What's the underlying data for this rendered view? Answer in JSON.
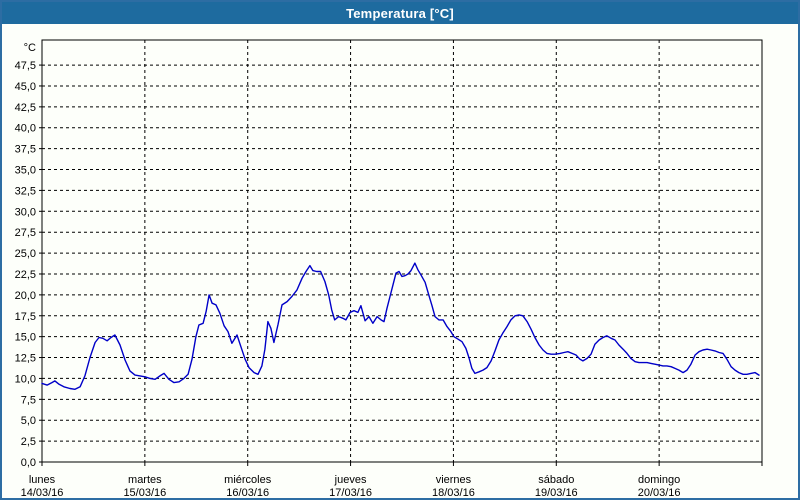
{
  "window": {
    "title": "Temperatura [°C]"
  },
  "colors": {
    "titlebar_bg": "#1e6b9f",
    "window_border": "#2d6da3",
    "window_bg": "#fdfffa",
    "line": "#0000c8",
    "grid": "#000000",
    "text": "#000000"
  },
  "chart_data": {
    "type": "line",
    "title": "Temperatura [°C]",
    "ylabel": "°C",
    "xlabel": "",
    "ylim": [
      0,
      50.5
    ],
    "y_tick_step": 2.5,
    "grid": "dashed, horizontal at every 2.5 °C and vertical at day boundaries",
    "legend_position": "none",
    "y_ticks": [
      {
        "v": 0,
        "label": "0,0"
      },
      {
        "v": 2.5,
        "label": "2,5"
      },
      {
        "v": 5,
        "label": "5,0"
      },
      {
        "v": 7.5,
        "label": "7,5"
      },
      {
        "v": 10,
        "label": "10,0"
      },
      {
        "v": 12.5,
        "label": "12,5"
      },
      {
        "v": 15,
        "label": "15,0"
      },
      {
        "v": 17.5,
        "label": "17,5"
      },
      {
        "v": 20,
        "label": "20,0"
      },
      {
        "v": 22.5,
        "label": "22,5"
      },
      {
        "v": 25,
        "label": "25,0"
      },
      {
        "v": 27.5,
        "label": "27,5"
      },
      {
        "v": 30,
        "label": "30,0"
      },
      {
        "v": 32.5,
        "label": "32,5"
      },
      {
        "v": 35,
        "label": "35,0"
      },
      {
        "v": 37.5,
        "label": "37,5"
      },
      {
        "v": 40,
        "label": "40,0"
      },
      {
        "v": 42.5,
        "label": "42,5"
      },
      {
        "v": 45,
        "label": "45,0"
      },
      {
        "v": 47.5,
        "label": "47,5"
      }
    ],
    "x_days": [
      {
        "weekday": "lunes",
        "date": "14/03/16"
      },
      {
        "weekday": "martes",
        "date": "15/03/16"
      },
      {
        "weekday": "miércoles",
        "date": "16/03/16"
      },
      {
        "weekday": "jueves",
        "date": "17/03/16"
      },
      {
        "weekday": "viernes",
        "date": "18/03/16"
      },
      {
        "weekday": "sábado",
        "date": "19/03/16"
      },
      {
        "weekday": "domingo",
        "date": "20/03/16"
      }
    ],
    "x_hours_range": [
      0,
      168
    ],
    "series": [
      {
        "name": "Temperatura",
        "color": "#0000c8",
        "points_unit": "[hours since lunes 00:00, °C]",
        "points": [
          [
            0,
            9.4
          ],
          [
            1.2,
            9.2
          ],
          [
            2.3,
            9.5
          ],
          [
            3,
            9.7
          ],
          [
            4,
            9.3
          ],
          [
            5.1,
            9
          ],
          [
            6.5,
            8.8
          ],
          [
            7.7,
            8.7
          ],
          [
            8.9,
            9
          ],
          [
            10,
            10.3
          ],
          [
            11.2,
            12.5
          ],
          [
            12.4,
            14.3
          ],
          [
            13.3,
            14.9
          ],
          [
            14.2,
            14.8
          ],
          [
            15.2,
            14.5
          ],
          [
            16.1,
            14.9
          ],
          [
            17,
            15.2
          ],
          [
            18.2,
            14
          ],
          [
            19.4,
            12.2
          ],
          [
            20.5,
            10.9
          ],
          [
            21.7,
            10.4
          ],
          [
            22.9,
            10.3
          ],
          [
            24,
            10.2
          ],
          [
            25.2,
            10
          ],
          [
            26.4,
            9.9
          ],
          [
            27.5,
            10.3
          ],
          [
            28.5,
            10.6
          ],
          [
            29.6,
            9.9
          ],
          [
            30.8,
            9.5
          ],
          [
            32,
            9.6
          ],
          [
            33.1,
            10
          ],
          [
            34.1,
            10.5
          ],
          [
            35,
            12.3
          ],
          [
            35.9,
            15
          ],
          [
            36.6,
            16.4
          ],
          [
            37.6,
            16.6
          ],
          [
            38.3,
            18
          ],
          [
            39,
            20
          ],
          [
            39.7,
            19
          ],
          [
            40.6,
            18.8
          ],
          [
            41.5,
            17.8
          ],
          [
            42.5,
            16.3
          ],
          [
            43.4,
            15.6
          ],
          [
            44.3,
            14.2
          ],
          [
            45.5,
            15.2
          ],
          [
            46.4,
            13.8
          ],
          [
            47.4,
            12.3
          ],
          [
            48.3,
            11.3
          ],
          [
            49.5,
            10.7
          ],
          [
            50.4,
            10.5
          ],
          [
            51.3,
            11.5
          ],
          [
            52,
            13.5
          ],
          [
            52.7,
            16.8
          ],
          [
            53.4,
            16
          ],
          [
            54.1,
            14.3
          ],
          [
            55.1,
            16.5
          ],
          [
            56,
            18.8
          ],
          [
            57.2,
            19.2
          ],
          [
            58.3,
            19.8
          ],
          [
            59.5,
            20.6
          ],
          [
            60.7,
            22
          ],
          [
            61.6,
            22.8
          ],
          [
            62.5,
            23.5
          ],
          [
            63.2,
            22.9
          ],
          [
            64.1,
            22.8
          ],
          [
            65,
            22.8
          ],
          [
            66,
            21.6
          ],
          [
            66.9,
            20
          ],
          [
            67.6,
            18.2
          ],
          [
            68.3,
            17
          ],
          [
            69.2,
            17.4
          ],
          [
            70.2,
            17.2
          ],
          [
            70.9,
            17
          ],
          [
            71.9,
            17.9
          ],
          [
            72.8,
            18.1
          ],
          [
            73.7,
            17.9
          ],
          [
            74.4,
            18.7
          ],
          [
            75.4,
            16.9
          ],
          [
            76.3,
            17.4
          ],
          [
            77.2,
            16.6
          ],
          [
            78.2,
            17.4
          ],
          [
            79.1,
            17
          ],
          [
            79.8,
            16.8
          ],
          [
            80.5,
            18.4
          ],
          [
            81.2,
            19.8
          ],
          [
            81.9,
            21.2
          ],
          [
            82.6,
            22.6
          ],
          [
            83.3,
            22.8
          ],
          [
            84,
            22.2
          ],
          [
            84.7,
            22.3
          ],
          [
            85.4,
            22.5
          ],
          [
            86.1,
            22.9
          ],
          [
            87,
            23.8
          ],
          [
            87.7,
            23
          ],
          [
            88.4,
            22.4
          ],
          [
            89.4,
            21.5
          ],
          [
            90.3,
            19.9
          ],
          [
            91,
            18.7
          ],
          [
            91.7,
            17.4
          ],
          [
            92.6,
            17
          ],
          [
            93.6,
            17
          ],
          [
            94.5,
            16.2
          ],
          [
            95.4,
            15.6
          ],
          [
            96.1,
            15
          ],
          [
            97.1,
            14.7
          ],
          [
            98,
            14.4
          ],
          [
            98.9,
            13.6
          ],
          [
            99.6,
            12.5
          ],
          [
            100.3,
            11.2
          ],
          [
            101,
            10.6
          ],
          [
            102,
            10.8
          ],
          [
            102.9,
            11
          ],
          [
            103.8,
            11.3
          ],
          [
            104.8,
            12.1
          ],
          [
            105.7,
            13.3
          ],
          [
            106.6,
            14.6
          ],
          [
            107.5,
            15.4
          ],
          [
            108.5,
            16.2
          ],
          [
            109.4,
            17
          ],
          [
            110.4,
            17.5
          ],
          [
            111.3,
            17.6
          ],
          [
            112.2,
            17.5
          ],
          [
            113.2,
            16.8
          ],
          [
            114.1,
            15.9
          ],
          [
            115,
            14.9
          ],
          [
            116,
            14
          ],
          [
            116.9,
            13.4
          ],
          [
            117.8,
            13
          ],
          [
            118.8,
            12.9
          ],
          [
            119.7,
            12.9
          ],
          [
            120.9,
            13
          ],
          [
            121.8,
            13.1
          ],
          [
            122.7,
            13.2
          ],
          [
            123.7,
            13
          ],
          [
            124.6,
            12.8
          ],
          [
            125.5,
            12.3
          ],
          [
            126.2,
            12.1
          ],
          [
            127.2,
            12.4
          ],
          [
            128.1,
            12.9
          ],
          [
            129,
            14.1
          ],
          [
            130,
            14.6
          ],
          [
            130.9,
            14.9
          ],
          [
            131.8,
            15.1
          ],
          [
            132.8,
            14.8
          ],
          [
            133.7,
            14.6
          ],
          [
            134.6,
            14
          ],
          [
            135.6,
            13.5
          ],
          [
            136.5,
            13
          ],
          [
            137.4,
            12.4
          ],
          [
            138.4,
            12
          ],
          [
            139.3,
            11.9
          ],
          [
            140.2,
            11.9
          ],
          [
            141.2,
            11.9
          ],
          [
            142.1,
            11.8
          ],
          [
            143,
            11.7
          ],
          [
            144,
            11.6
          ],
          [
            144.9,
            11.5
          ],
          [
            145.8,
            11.5
          ],
          [
            146.8,
            11.4
          ],
          [
            147.7,
            11.2
          ],
          [
            148.6,
            11
          ],
          [
            149.6,
            10.7
          ],
          [
            150.5,
            11
          ],
          [
            151.4,
            11.7
          ],
          [
            152.4,
            12.8
          ],
          [
            153.3,
            13.2
          ],
          [
            154.2,
            13.4
          ],
          [
            155.2,
            13.5
          ],
          [
            156.1,
            13.4
          ],
          [
            157,
            13.3
          ],
          [
            158,
            13.1
          ],
          [
            158.9,
            13
          ],
          [
            159.8,
            12.3
          ],
          [
            160.8,
            11.4
          ],
          [
            161.7,
            11
          ],
          [
            162.6,
            10.7
          ],
          [
            163.6,
            10.5
          ],
          [
            164.5,
            10.5
          ],
          [
            165.4,
            10.6
          ],
          [
            166.4,
            10.7
          ],
          [
            167.3,
            10.4
          ]
        ]
      }
    ]
  }
}
